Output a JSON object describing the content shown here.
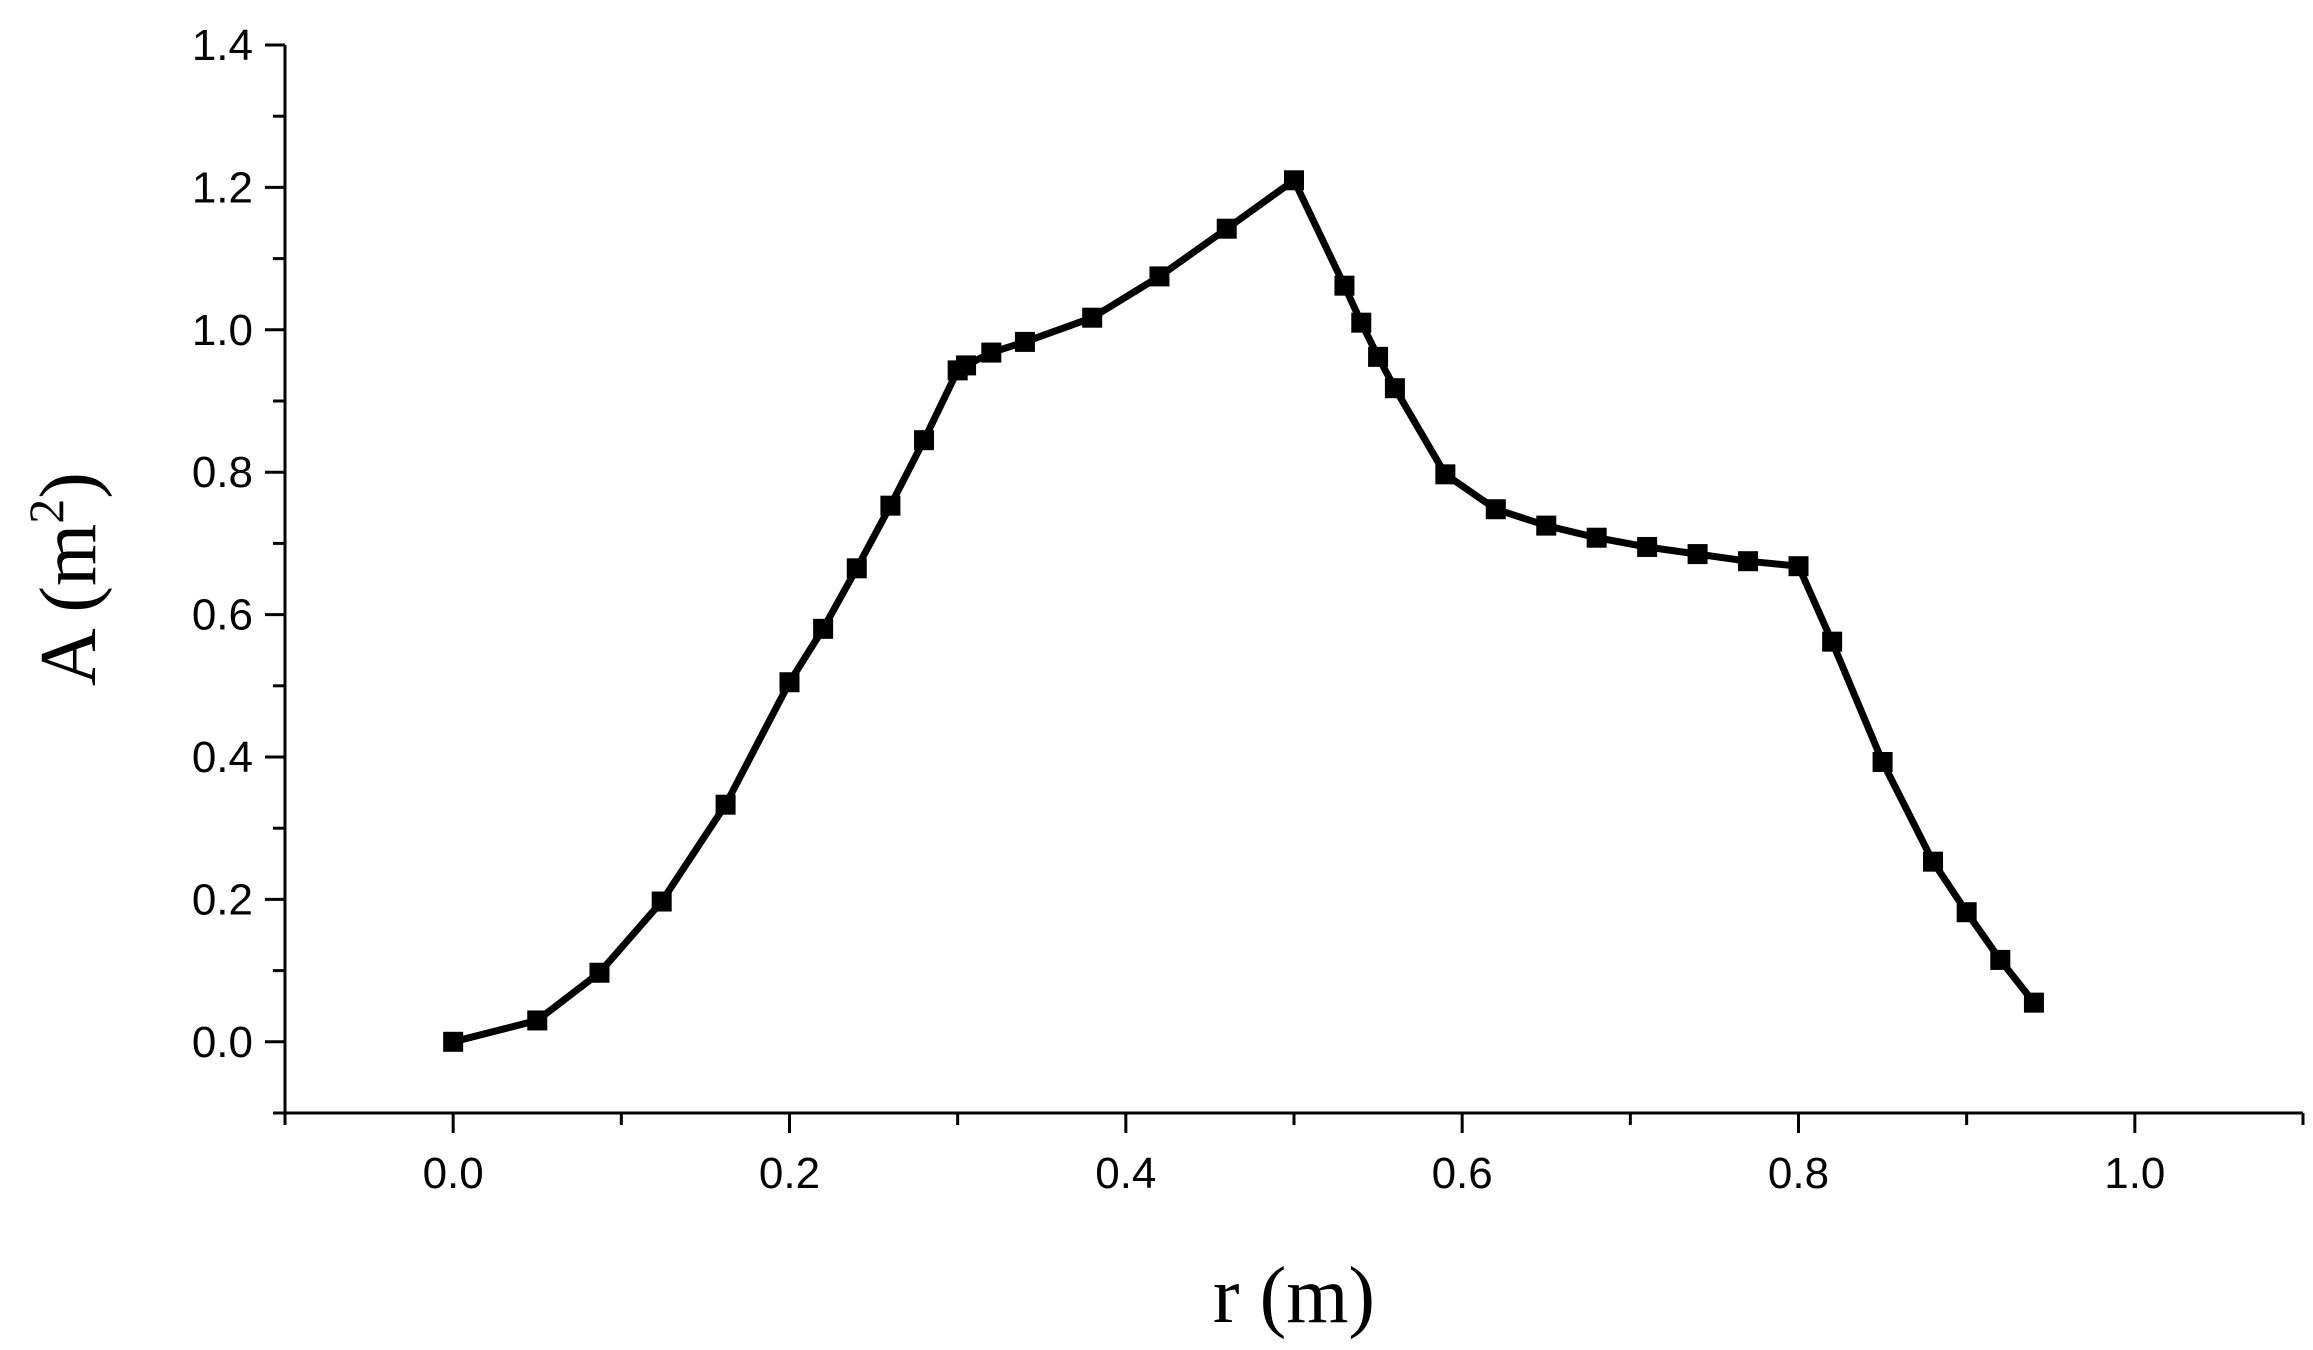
{
  "chart_data": {
    "type": "line",
    "xlabel": "r (m)",
    "ylabel": {
      "main": "A (m",
      "sup": "2",
      "close": ")"
    },
    "xlim": [
      -0.1,
      1.1
    ],
    "ylim": [
      -0.1,
      1.4
    ],
    "xticks": [
      "0.0",
      "0.2",
      "0.4",
      "0.6",
      "0.8",
      "1.0"
    ],
    "yticks": [
      "0.0",
      "0.2",
      "0.4",
      "0.6",
      "0.8",
      "1.0",
      "1.2",
      "1.4"
    ],
    "grid": false,
    "series": [
      {
        "color": "#000000",
        "marker": "square",
        "x": [
          0.0,
          0.05,
          0.087,
          0.124,
          0.162,
          0.2,
          0.22,
          0.24,
          0.26,
          0.28,
          0.3,
          0.305,
          0.32,
          0.34,
          0.38,
          0.42,
          0.46,
          0.5,
          0.53,
          0.54,
          0.55,
          0.56,
          0.59,
          0.62,
          0.65,
          0.68,
          0.71,
          0.74,
          0.77,
          0.8,
          0.82,
          0.85,
          0.88,
          0.9,
          0.92,
          0.94
        ],
        "y": [
          0.0,
          0.03,
          0.097,
          0.197,
          0.333,
          0.505,
          0.58,
          0.665,
          0.753,
          0.845,
          0.943,
          0.95,
          0.968,
          0.983,
          1.017,
          1.075,
          1.142,
          1.21,
          1.062,
          1.01,
          0.962,
          0.918,
          0.797,
          0.748,
          0.725,
          0.708,
          0.695,
          0.685,
          0.675,
          0.668,
          0.562,
          0.393,
          0.253,
          0.182,
          0.115,
          0.055
        ]
      }
    ]
  }
}
